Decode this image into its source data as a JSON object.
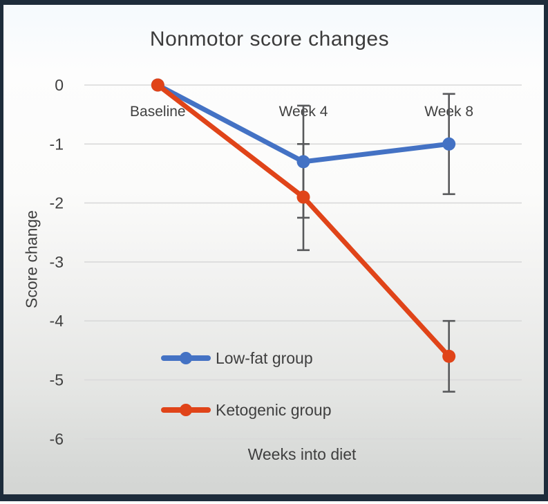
{
  "frame": {
    "border_color": "#1d2c3b"
  },
  "chart_data": {
    "type": "line",
    "title": "Nonmotor score changes",
    "xlabel": "Weeks into diet",
    "ylabel": "Score change",
    "categories": [
      "Baseline",
      "Week 4",
      "Week 8"
    ],
    "yticks": [
      0,
      -1,
      -2,
      -3,
      -4,
      -5,
      -6
    ],
    "ylim": [
      0,
      -6
    ],
    "grid": "horizontal",
    "gridline_color": "#d9d9d9",
    "error_bar_color": "#58595b",
    "legend_position": "inside-bottom-left",
    "series": [
      {
        "name": "Low-fat group",
        "color": "#4472C4",
        "values": [
          0,
          -1.3,
          -1.0
        ],
        "error_bars": [
          null,
          0.95,
          0.85
        ]
      },
      {
        "name": "Ketogenic group",
        "color": "#E04419",
        "values": [
          0,
          -1.9,
          -4.6
        ],
        "error_bars": [
          null,
          0.9,
          0.6
        ]
      }
    ]
  }
}
